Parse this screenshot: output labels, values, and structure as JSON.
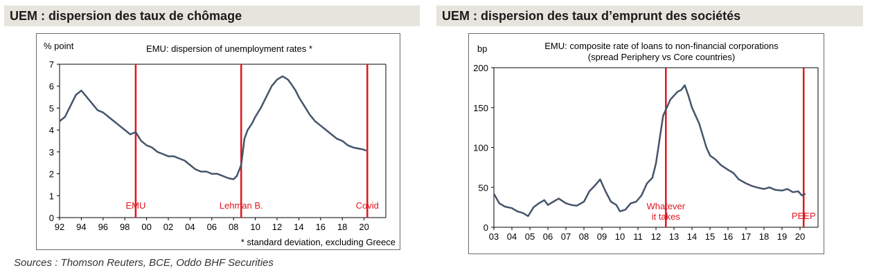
{
  "titles": {
    "left": "UEM : dispersion des taux de chômage",
    "right": "UEM : dispersion des taux d’emprunt des sociétés"
  },
  "sources": "Sources : Thomson Reuters, BCE, Oddo BHF Securities",
  "colors": {
    "line": "#44546a",
    "event": "#e0141e",
    "event_text": "#e0141e",
    "axis": "#000000",
    "title_bg": "#e6e4dd"
  },
  "chart_data": [
    {
      "type": "line",
      "title": "EMU: dispersion of unemployment rates *",
      "ylabel": "% point",
      "footnote": "* standard deviation, excluding Greece",
      "xlim": [
        1992,
        2022
      ],
      "ylim": [
        0,
        7
      ],
      "yticks": [
        0,
        1,
        2,
        3,
        4,
        5,
        6,
        7
      ],
      "xtick_labels": [
        "92",
        "94",
        "96",
        "98",
        "00",
        "02",
        "04",
        "06",
        "08",
        "10",
        "12",
        "14",
        "16",
        "18",
        "20"
      ],
      "xtick_values": [
        1992,
        1994,
        1996,
        1998,
        2000,
        2002,
        2004,
        2006,
        2008,
        2010,
        2012,
        2014,
        2016,
        2018,
        2020
      ],
      "grid": false,
      "events": [
        {
          "label": "EMU",
          "x": 1999.0
        },
        {
          "label": "Lehman B.",
          "x": 2008.7
        },
        {
          "label": "Covid",
          "x": 2020.3
        }
      ],
      "series": [
        {
          "x": [
            1992.0,
            1992.5,
            1993.0,
            1993.5,
            1994.0,
            1994.5,
            1995.0,
            1995.5,
            1996.0,
            1996.5,
            1997.0,
            1997.5,
            1998.0,
            1998.5,
            1999.0,
            1999.5,
            2000.0,
            2000.5,
            2001.0,
            2001.5,
            2002.0,
            2002.5,
            2003.0,
            2003.5,
            2004.0,
            2004.5,
            2005.0,
            2005.5,
            2006.0,
            2006.5,
            2007.0,
            2007.5,
            2008.0,
            2008.3,
            2008.7,
            2009.0,
            2009.3,
            2009.7,
            2010.0,
            2010.5,
            2011.0,
            2011.5,
            2012.0,
            2012.5,
            2013.0,
            2013.3,
            2013.7,
            2014.0,
            2014.5,
            2015.0,
            2015.5,
            2016.0,
            2016.5,
            2017.0,
            2017.5,
            2018.0,
            2018.5,
            2019.0,
            2019.5,
            2020.0,
            2020.2
          ],
          "y": [
            4.4,
            4.6,
            5.1,
            5.6,
            5.8,
            5.5,
            5.2,
            4.9,
            4.8,
            4.6,
            4.4,
            4.2,
            4.0,
            3.8,
            3.9,
            3.5,
            3.3,
            3.2,
            3.0,
            2.9,
            2.8,
            2.8,
            2.7,
            2.6,
            2.4,
            2.2,
            2.1,
            2.1,
            2.0,
            2.0,
            1.9,
            1.8,
            1.75,
            1.9,
            2.4,
            3.6,
            4.0,
            4.3,
            4.6,
            5.0,
            5.5,
            6.0,
            6.3,
            6.45,
            6.3,
            6.1,
            5.8,
            5.5,
            5.1,
            4.7,
            4.4,
            4.2,
            4.0,
            3.8,
            3.6,
            3.5,
            3.3,
            3.2,
            3.15,
            3.1,
            3.05
          ]
        }
      ]
    },
    {
      "type": "line",
      "title": "EMU: composite rate of loans to non-financial corporations",
      "subtitle": "(spread Periphery vs Core countries)",
      "ylabel": "bp",
      "xlim": [
        2003,
        2021
      ],
      "ylim": [
        0,
        200
      ],
      "yticks": [
        0,
        50,
        100,
        150,
        200
      ],
      "xtick_labels": [
        "03",
        "04",
        "05",
        "06",
        "07",
        "08",
        "09",
        "10",
        "11",
        "12",
        "13",
        "14",
        "15",
        "16",
        "17",
        "18",
        "19",
        "20"
      ],
      "xtick_values": [
        2003,
        2004,
        2005,
        2006,
        2007,
        2008,
        2009,
        2010,
        2011,
        2012,
        2013,
        2014,
        2015,
        2016,
        2017,
        2018,
        2019,
        2020
      ],
      "grid": false,
      "events": [
        {
          "label": "Whatever",
          "label2": "it takes",
          "x": 2012.55
        },
        {
          "label": "PEEP",
          "x": 2020.2
        }
      ],
      "series": [
        {
          "x": [
            2003.0,
            2003.3,
            2003.6,
            2004.0,
            2004.3,
            2004.6,
            2004.9,
            2005.2,
            2005.5,
            2005.8,
            2006.0,
            2006.3,
            2006.6,
            2007.0,
            2007.3,
            2007.6,
            2008.0,
            2008.3,
            2008.6,
            2008.9,
            2009.2,
            2009.5,
            2009.8,
            2010.0,
            2010.3,
            2010.6,
            2010.9,
            2011.2,
            2011.5,
            2011.8,
            2012.0,
            2012.2,
            2012.4,
            2012.6,
            2012.8,
            2013.0,
            2013.2,
            2013.4,
            2013.6,
            2013.8,
            2014.0,
            2014.2,
            2014.4,
            2014.6,
            2014.8,
            2015.0,
            2015.3,
            2015.6,
            2016.0,
            2016.3,
            2016.6,
            2017.0,
            2017.3,
            2017.6,
            2018.0,
            2018.3,
            2018.6,
            2019.0,
            2019.3,
            2019.6,
            2019.9,
            2020.1,
            2020.3
          ],
          "y": [
            42,
            30,
            26,
            24,
            20,
            18,
            14,
            25,
            30,
            34,
            28,
            32,
            36,
            30,
            28,
            27,
            32,
            45,
            52,
            60,
            45,
            32,
            28,
            20,
            22,
            30,
            32,
            40,
            55,
            62,
            80,
            110,
            140,
            150,
            160,
            165,
            170,
            172,
            178,
            165,
            150,
            140,
            130,
            115,
            100,
            90,
            85,
            78,
            72,
            68,
            60,
            55,
            52,
            50,
            48,
            50,
            47,
            46,
            48,
            44,
            45,
            40,
            42
          ]
        }
      ]
    }
  ]
}
